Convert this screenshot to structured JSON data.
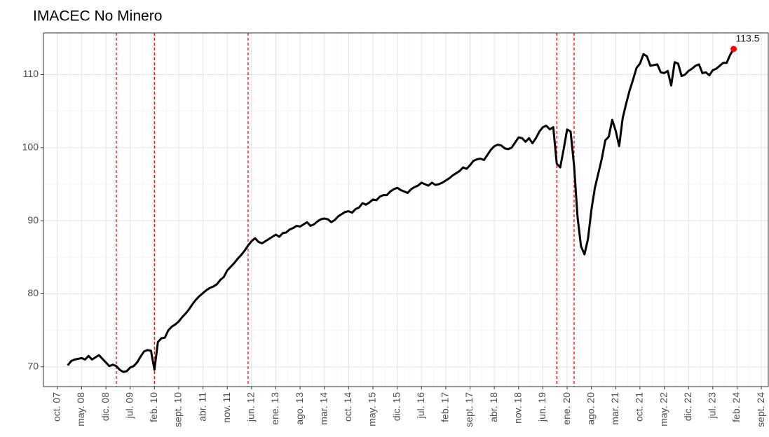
{
  "chart_data": {
    "type": "line",
    "title": "IMACEC No Minero",
    "x": [
      "2008-01",
      "2008-02",
      "2008-03",
      "2008-04",
      "2008-05",
      "2008-06",
      "2008-07",
      "2008-08",
      "2008-09",
      "2008-10",
      "2008-11",
      "2008-12",
      "2009-01",
      "2009-02",
      "2009-03",
      "2009-04",
      "2009-05",
      "2009-06",
      "2009-07",
      "2009-08",
      "2009-09",
      "2009-10",
      "2009-11",
      "2009-12",
      "2010-01",
      "2010-02",
      "2010-03",
      "2010-04",
      "2010-05",
      "2010-06",
      "2010-07",
      "2010-08",
      "2010-09",
      "2010-10",
      "2010-11",
      "2010-12",
      "2011-01",
      "2011-02",
      "2011-03",
      "2011-04",
      "2011-05",
      "2011-06",
      "2011-07",
      "2011-08",
      "2011-09",
      "2011-10",
      "2011-11",
      "2011-12",
      "2012-01",
      "2012-02",
      "2012-03",
      "2012-04",
      "2012-05",
      "2012-06",
      "2012-07",
      "2012-08",
      "2012-09",
      "2012-10",
      "2012-11",
      "2012-12",
      "2013-01",
      "2013-02",
      "2013-03",
      "2013-04",
      "2013-05",
      "2013-06",
      "2013-07",
      "2013-08",
      "2013-09",
      "2013-10",
      "2013-11",
      "2013-12",
      "2014-01",
      "2014-02",
      "2014-03",
      "2014-04",
      "2014-05",
      "2014-06",
      "2014-07",
      "2014-08",
      "2014-09",
      "2014-10",
      "2014-11",
      "2014-12",
      "2015-01",
      "2015-02",
      "2015-03",
      "2015-04",
      "2015-05",
      "2015-06",
      "2015-07",
      "2015-08",
      "2015-09",
      "2015-10",
      "2015-11",
      "2015-12",
      "2016-01",
      "2016-02",
      "2016-03",
      "2016-04",
      "2016-05",
      "2016-06",
      "2016-07",
      "2016-08",
      "2016-09",
      "2016-10",
      "2016-11",
      "2016-12",
      "2017-01",
      "2017-02",
      "2017-03",
      "2017-04",
      "2017-05",
      "2017-06",
      "2017-07",
      "2017-08",
      "2017-09",
      "2017-10",
      "2017-11",
      "2017-12",
      "2018-01",
      "2018-02",
      "2018-03",
      "2018-04",
      "2018-05",
      "2018-06",
      "2018-07",
      "2018-08",
      "2018-09",
      "2018-10",
      "2018-11",
      "2018-12",
      "2019-01",
      "2019-02",
      "2019-03",
      "2019-04",
      "2019-05",
      "2019-06",
      "2019-07",
      "2019-08",
      "2019-09",
      "2019-10",
      "2019-11",
      "2019-12",
      "2020-01",
      "2020-02",
      "2020-03",
      "2020-04",
      "2020-05",
      "2020-06",
      "2020-07",
      "2020-08",
      "2020-09",
      "2020-10",
      "2020-11",
      "2020-12",
      "2021-01",
      "2021-02",
      "2021-03",
      "2021-04",
      "2021-05",
      "2021-06",
      "2021-07",
      "2021-08",
      "2021-09",
      "2021-10",
      "2021-11",
      "2021-12",
      "2022-01",
      "2022-02",
      "2022-03",
      "2022-04",
      "2022-05",
      "2022-06",
      "2022-07",
      "2022-08",
      "2022-09",
      "2022-10",
      "2022-11",
      "2022-12",
      "2023-01",
      "2023-02",
      "2023-03",
      "2023-04",
      "2023-05",
      "2023-06",
      "2023-07",
      "2023-08",
      "2023-09",
      "2023-10",
      "2023-11",
      "2023-12",
      "2024-01"
    ],
    "values": [
      70.2,
      70.8,
      71.0,
      71.1,
      71.2,
      71.0,
      71.5,
      71.0,
      71.3,
      71.6,
      71.1,
      70.6,
      70.1,
      70.3,
      70.1,
      69.6,
      69.3,
      69.4,
      69.9,
      70.1,
      70.6,
      71.4,
      72.1,
      72.3,
      72.2,
      69.6,
      73.4,
      73.9,
      74.0,
      75.0,
      75.5,
      75.8,
      76.2,
      76.8,
      77.3,
      77.9,
      78.6,
      79.2,
      79.7,
      80.1,
      80.5,
      80.8,
      81.0,
      81.3,
      81.9,
      82.3,
      83.2,
      83.7,
      84.2,
      84.8,
      85.3,
      85.9,
      86.6,
      87.2,
      87.6,
      87.1,
      86.9,
      87.2,
      87.5,
      87.8,
      88.1,
      87.8,
      88.3,
      88.4,
      88.8,
      89.0,
      89.3,
      89.2,
      89.5,
      89.8,
      89.3,
      89.5,
      89.9,
      90.2,
      90.3,
      90.2,
      89.8,
      90.1,
      90.6,
      90.9,
      91.2,
      91.3,
      91.1,
      91.6,
      91.8,
      92.4,
      92.2,
      92.5,
      92.9,
      92.8,
      93.3,
      93.5,
      93.5,
      94.0,
      94.3,
      94.5,
      94.2,
      94.0,
      93.8,
      94.3,
      94.6,
      94.8,
      95.2,
      95.0,
      94.8,
      95.2,
      94.9,
      95.0,
      95.2,
      95.5,
      95.8,
      96.2,
      96.5,
      96.8,
      97.3,
      97.1,
      97.6,
      98.2,
      98.4,
      98.5,
      98.3,
      99.0,
      99.7,
      100.2,
      100.4,
      100.3,
      99.9,
      99.8,
      100.0,
      100.7,
      101.4,
      101.3,
      100.8,
      101.3,
      100.6,
      101.3,
      102.2,
      102.8,
      103.0,
      102.5,
      102.8,
      97.8,
      97.3,
      99.8,
      102.5,
      102.2,
      97.5,
      90.5,
      86.5,
      85.4,
      87.5,
      91.5,
      94.5,
      96.5,
      98.5,
      101.0,
      101.5,
      103.8,
      102.3,
      100.2,
      104.0,
      106.0,
      107.8,
      109.3,
      110.9,
      111.5,
      112.8,
      112.5,
      111.2,
      111.3,
      111.4,
      110.3,
      110.2,
      110.5,
      108.5,
      111.7,
      111.5,
      109.8,
      110.0,
      110.5,
      110.8,
      111.2,
      111.4,
      110.2,
      110.3,
      109.9,
      110.6,
      110.8,
      111.2,
      111.6,
      111.6,
      112.7,
      113.5
    ],
    "color": "#000000",
    "highlight_color": "#ff0000",
    "vlines": [
      "2009-03",
      "2010-02",
      "2012-05",
      "2019-10",
      "2020-03"
    ],
    "vline_color": "#ff0000",
    "xlim": [
      "2007-06",
      "2024-11"
    ],
    "xticks": [
      {
        "value": "2007-10",
        "label": "oct. 07"
      },
      {
        "value": "2008-05",
        "label": "may. 08"
      },
      {
        "value": "2008-12",
        "label": "dic. 08"
      },
      {
        "value": "2009-07",
        "label": "jul. 09"
      },
      {
        "value": "2010-02",
        "label": "feb. 10"
      },
      {
        "value": "2010-09",
        "label": "sept. 10"
      },
      {
        "value": "2011-04",
        "label": "abr. 11"
      },
      {
        "value": "2011-11",
        "label": "nov. 11"
      },
      {
        "value": "2012-06",
        "label": "jun. 12"
      },
      {
        "value": "2013-01",
        "label": "ene. 13"
      },
      {
        "value": "2013-08",
        "label": "ago. 13"
      },
      {
        "value": "2014-03",
        "label": "mar. 14"
      },
      {
        "value": "2014-10",
        "label": "oct. 14"
      },
      {
        "value": "2015-05",
        "label": "may. 15"
      },
      {
        "value": "2015-12",
        "label": "dic. 15"
      },
      {
        "value": "2016-07",
        "label": "jul. 16"
      },
      {
        "value": "2017-02",
        "label": "feb. 17"
      },
      {
        "value": "2017-09",
        "label": "sept. 17"
      },
      {
        "value": "2018-04",
        "label": "abr. 18"
      },
      {
        "value": "2018-11",
        "label": "nov. 18"
      },
      {
        "value": "2019-06",
        "label": "jun. 19"
      },
      {
        "value": "2020-01",
        "label": "ene. 20"
      },
      {
        "value": "2020-08",
        "label": "ago. 20"
      },
      {
        "value": "2021-03",
        "label": "mar. 21"
      },
      {
        "value": "2021-10",
        "label": "oct. 21"
      },
      {
        "value": "2022-05",
        "label": "may. 22"
      },
      {
        "value": "2022-12",
        "label": "dic. 22"
      },
      {
        "value": "2023-07",
        "label": "jul. 23"
      },
      {
        "value": "2024-02",
        "label": "feb. 24"
      },
      {
        "value": "2024-09",
        "label": "sept. 24"
      }
    ],
    "ylim": [
      67.3,
      115.7
    ],
    "yticks": [
      70,
      80,
      90,
      100,
      110
    ],
    "grid": true
  }
}
